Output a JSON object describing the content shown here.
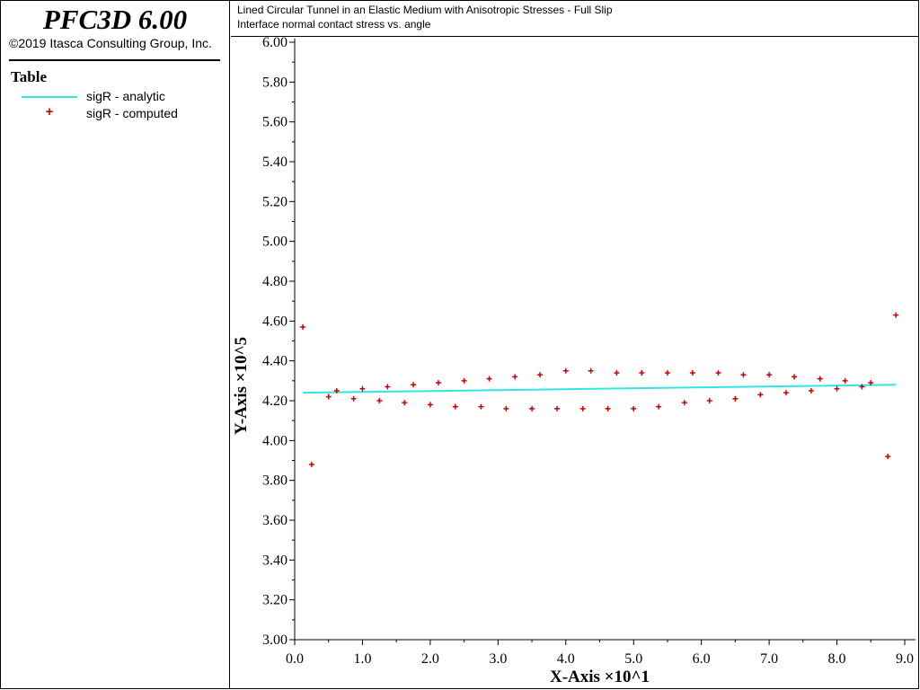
{
  "app": {
    "title": "PFC3D 6.00",
    "copyright": "©2019 Itasca Consulting Group, Inc."
  },
  "legend": {
    "title": "Table",
    "items": [
      {
        "label": "sigR - analytic",
        "icon": "line-icon",
        "color": "#33e6e6"
      },
      {
        "label": "sigR - computed",
        "icon": "plus-marker-icon",
        "color": "#cc0000"
      }
    ]
  },
  "header": {
    "title": "Lined Circular Tunnel in an Elastic Medium with Anisotropic Stresses - Full Slip",
    "subtitle": "Interface normal contact stress vs. angle"
  },
  "chart_data": {
    "type": "scatter",
    "title": "Lined Circular Tunnel in an Elastic Medium with Anisotropic Stresses - Full Slip",
    "subtitle": "Interface normal contact stress vs. angle",
    "xlabel": "X-Axis ×10^1",
    "ylabel": "Y-Axis ×10^5",
    "xlim": [
      0.0,
      9.0
    ],
    "ylim": [
      3.0,
      6.0
    ],
    "xticks": [
      "0.0",
      "1.0",
      "2.0",
      "3.0",
      "4.0",
      "5.0",
      "6.0",
      "7.0",
      "8.0",
      "9.0"
    ],
    "yticks": [
      "3.00",
      "3.20",
      "3.40",
      "3.60",
      "3.80",
      "4.00",
      "4.20",
      "4.40",
      "4.60",
      "4.80",
      "5.00",
      "5.20",
      "5.40",
      "5.60",
      "5.80",
      "6.00"
    ],
    "grid": false,
    "legend_position": "left panel",
    "series": [
      {
        "name": "sigR - analytic",
        "style": "line",
        "color": "#33e6e6",
        "x": [
          0.12,
          8.87
        ],
        "y": [
          4.24,
          4.28
        ]
      },
      {
        "name": "sigR - computed",
        "style": "plus",
        "color": "#cc0000",
        "x": [
          0.12,
          0.25,
          0.5,
          0.62,
          0.87,
          1.0,
          1.25,
          1.37,
          1.62,
          1.75,
          2.0,
          2.12,
          2.37,
          2.5,
          2.75,
          2.87,
          3.12,
          3.25,
          3.5,
          3.62,
          3.87,
          4.0,
          4.25,
          4.37,
          4.62,
          4.75,
          5.0,
          5.12,
          5.37,
          5.5,
          5.75,
          5.87,
          6.12,
          6.25,
          6.5,
          6.62,
          6.87,
          7.0,
          7.25,
          7.37,
          7.62,
          7.75,
          8.0,
          8.12,
          8.37,
          8.5,
          8.75,
          8.87
        ],
        "y": [
          4.57,
          3.88,
          4.22,
          4.25,
          4.21,
          4.26,
          4.2,
          4.27,
          4.19,
          4.28,
          4.18,
          4.29,
          4.17,
          4.3,
          4.17,
          4.31,
          4.16,
          4.32,
          4.16,
          4.33,
          4.16,
          4.35,
          4.16,
          4.35,
          4.16,
          4.34,
          4.16,
          4.34,
          4.17,
          4.34,
          4.19,
          4.34,
          4.2,
          4.34,
          4.21,
          4.33,
          4.23,
          4.33,
          4.24,
          4.32,
          4.25,
          4.31,
          4.26,
          4.3,
          4.27,
          4.29,
          3.92,
          4.63
        ]
      }
    ]
  }
}
